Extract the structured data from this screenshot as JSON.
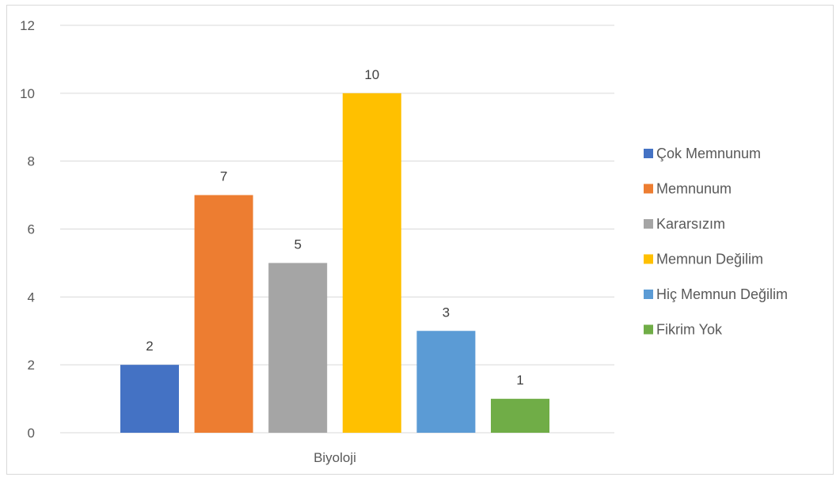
{
  "chart_data": {
    "type": "bar",
    "title": "",
    "xlabel": "",
    "ylabel": "",
    "categories": [
      "Biyoloji"
    ],
    "series": [
      {
        "name": "Çok Memnunum",
        "values": [
          2
        ],
        "color": "#4472C4"
      },
      {
        "name": "Memnunum",
        "values": [
          7
        ],
        "color": "#ED7D31"
      },
      {
        "name": "Kararsızım",
        "values": [
          5
        ],
        "color": "#A5A5A5"
      },
      {
        "name": "Memnun Değilim",
        "values": [
          10
        ],
        "color": "#FFC000"
      },
      {
        "name": "Hiç Memnun Değilim",
        "values": [
          3
        ],
        "color": "#5B9BD5"
      },
      {
        "name": "Fikrim Yok",
        "values": [
          1
        ],
        "color": "#70AD47"
      }
    ],
    "ylim": [
      0,
      12
    ],
    "yticks": [
      0,
      2,
      4,
      6,
      8,
      10,
      12
    ],
    "grid": true,
    "data_labels": true,
    "legend_position": "right"
  }
}
